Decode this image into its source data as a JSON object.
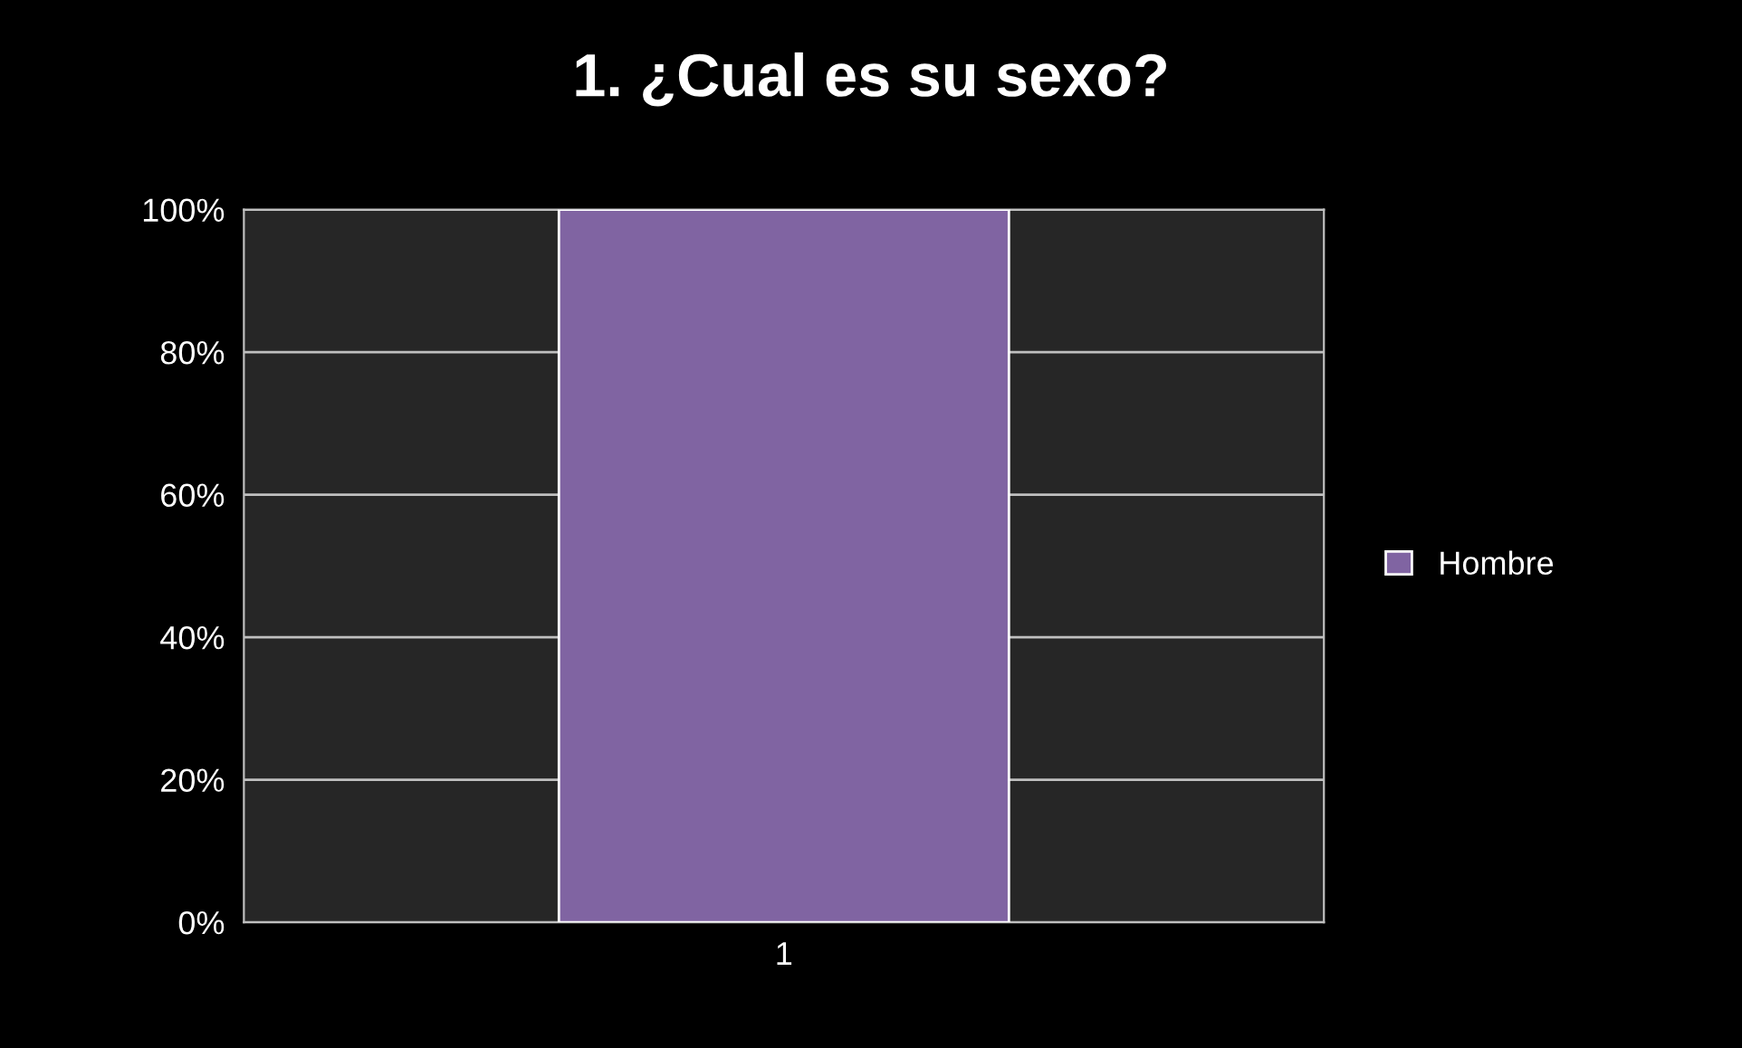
{
  "chart_data": {
    "type": "bar",
    "title": "1. ¿Cual es su sexo?",
    "categories": [
      "1"
    ],
    "series": [
      {
        "name": "Hombre",
        "color": "#8064a2",
        "values": [
          100
        ]
      }
    ],
    "ylim": [
      0,
      100
    ],
    "yticks": [
      {
        "value": 0,
        "label": "0%"
      },
      {
        "value": 20,
        "label": "20%"
      },
      {
        "value": 40,
        "label": "40%"
      },
      {
        "value": 60,
        "label": "60%"
      },
      {
        "value": 80,
        "label": "80%"
      },
      {
        "value": 100,
        "label": "100%"
      }
    ],
    "grid": "y",
    "legend": "right"
  }
}
